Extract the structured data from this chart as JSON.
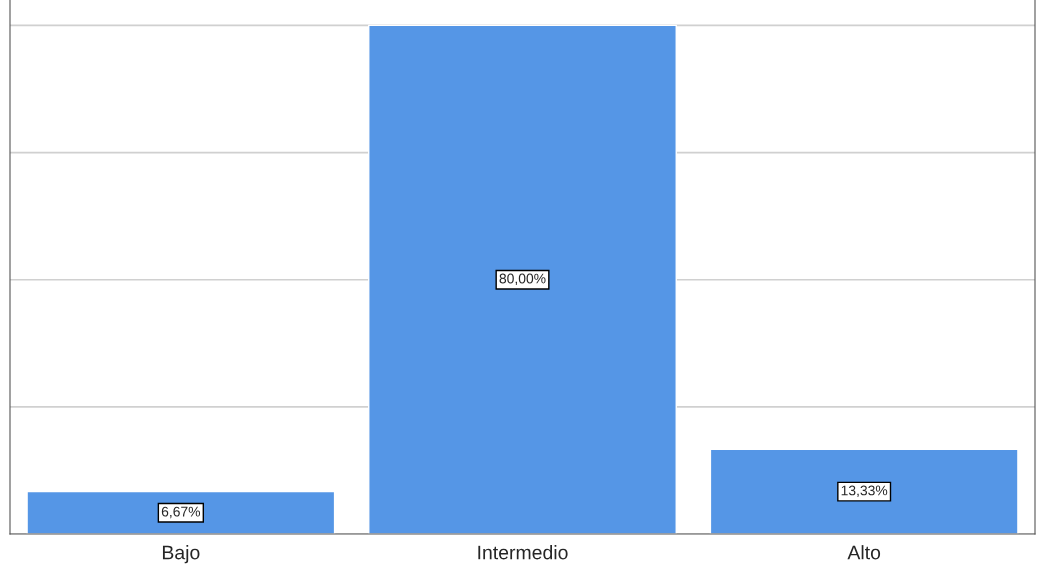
{
  "chart_data": {
    "type": "bar",
    "categories": [
      "Bajo",
      "Intermedio",
      "Alto"
    ],
    "values": [
      6.67,
      80,
      13.33
    ],
    "value_labels": [
      "6,67%",
      "80,00%",
      "13,33%"
    ],
    "color": "#5596e6",
    "ylim": [
      0,
      84
    ],
    "yticks": [
      {
        "value": 0,
        "label": null
      },
      {
        "value": 20,
        "label": null
      },
      {
        "value": 40,
        "label": null
      },
      {
        "value": 60,
        "label": null
      },
      {
        "value": 80,
        "label": null
      }
    ],
    "tick_labels": "x",
    "grid": "y"
  }
}
